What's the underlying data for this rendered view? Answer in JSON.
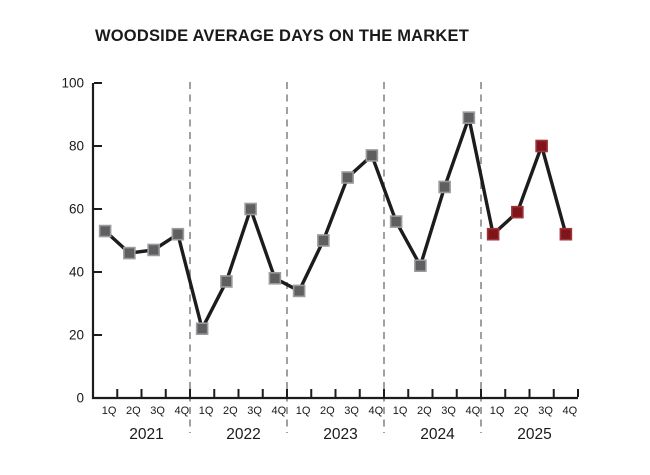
{
  "page": {
    "background": "#ffffff"
  },
  "chart_data": {
    "type": "line",
    "title": "WOODSIDE AVERAGE DAYS ON THE MARKET",
    "xlabel": "",
    "ylabel": "",
    "ylim": [
      0,
      100
    ],
    "yticks": [
      0,
      20,
      40,
      60,
      80,
      100
    ],
    "years": [
      "2021",
      "2022",
      "2023",
      "2024",
      "2025"
    ],
    "quarter_labels": [
      "1Q",
      "2Q",
      "3Q",
      "4Q"
    ],
    "legend": "none",
    "grid": "dashed vertical separators between years",
    "series": [
      {
        "name": "Average days on market",
        "points": [
          {
            "year": "2021",
            "quarter": "1Q",
            "value": 53,
            "marker": "gray"
          },
          {
            "year": "2021",
            "quarter": "2Q",
            "value": 46,
            "marker": "gray"
          },
          {
            "year": "2021",
            "quarter": "3Q",
            "value": 47,
            "marker": "gray"
          },
          {
            "year": "2021",
            "quarter": "4Q",
            "value": 52,
            "marker": "gray"
          },
          {
            "year": "2022",
            "quarter": "1Q",
            "value": 22,
            "marker": "gray"
          },
          {
            "year": "2022",
            "quarter": "2Q",
            "value": 37,
            "marker": "gray"
          },
          {
            "year": "2022",
            "quarter": "3Q",
            "value": 60,
            "marker": "gray"
          },
          {
            "year": "2022",
            "quarter": "4Q",
            "value": 38,
            "marker": "gray"
          },
          {
            "year": "2023",
            "quarter": "1Q",
            "value": 34,
            "marker": "gray"
          },
          {
            "year": "2023",
            "quarter": "2Q",
            "value": 50,
            "marker": "gray"
          },
          {
            "year": "2023",
            "quarter": "3Q",
            "value": 70,
            "marker": "gray"
          },
          {
            "year": "2023",
            "quarter": "4Q",
            "value": 77,
            "marker": "gray"
          },
          {
            "year": "2024",
            "quarter": "1Q",
            "value": 56,
            "marker": "gray"
          },
          {
            "year": "2024",
            "quarter": "2Q",
            "value": 42,
            "marker": "gray"
          },
          {
            "year": "2024",
            "quarter": "3Q",
            "value": 67,
            "marker": "gray"
          },
          {
            "year": "2024",
            "quarter": "4Q",
            "value": 89,
            "marker": "gray"
          },
          {
            "year": "2025",
            "quarter": "1Q",
            "value": 52,
            "marker": "red"
          },
          {
            "year": "2025",
            "quarter": "2Q",
            "value": 59,
            "marker": "red"
          },
          {
            "year": "2025",
            "quarter": "3Q",
            "value": 80,
            "marker": "red"
          },
          {
            "year": "2025",
            "quarter": "4Q",
            "value": 52,
            "marker": "red"
          }
        ]
      }
    ],
    "styles": {
      "line_color": "#1c1c1c",
      "axis_color": "#1c1c1c",
      "text_color": "#1a1a1a",
      "separator_color": "#888888",
      "marker_colors": {
        "gray": {
          "fill": "#5f5f61",
          "stroke": "#9b9b9d"
        },
        "red": {
          "fill": "#7f151a",
          "stroke": "#9e3338"
        }
      }
    }
  }
}
